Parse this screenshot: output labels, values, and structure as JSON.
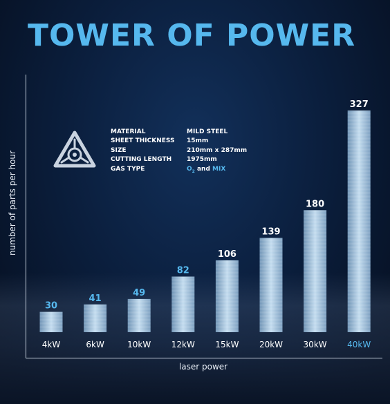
{
  "title": "TOWER OF POWER",
  "specs": {
    "rows": [
      {
        "key": "MATERIAL",
        "value": "MILD STEEL"
      },
      {
        "key": "SHEET THICKNESS",
        "value": "15mm"
      },
      {
        "key": "SIZE",
        "value": "210mm x 287mm"
      },
      {
        "key": "CUTTING LENGTH",
        "value": "1975mm"
      }
    ],
    "gas_key": "GAS TYPE",
    "gas_o": "O",
    "gas_sub": "2",
    "gas_and": " and ",
    "gas_mix": "MIX"
  },
  "colors": {
    "accent": "#56b8ee",
    "background": "#0b1f3e",
    "bar": "#a9c8e2",
    "label_white": "#ffffff"
  },
  "chart_data": {
    "type": "bar",
    "categories": [
      "4kW",
      "6kW",
      "10kW",
      "12kW",
      "15kW",
      "20kW",
      "30kW",
      "40kW"
    ],
    "values": [
      30,
      41,
      49,
      82,
      106,
      139,
      180,
      327
    ],
    "value_label_colors": [
      "#56b8ee",
      "#56b8ee",
      "#56b8ee",
      "#56b8ee",
      "#ffffff",
      "#ffffff",
      "#ffffff",
      "#ffffff"
    ],
    "category_label_colors": [
      "#ffffff",
      "#ffffff",
      "#ffffff",
      "#ffffff",
      "#ffffff",
      "#ffffff",
      "#ffffff",
      "#56b8ee"
    ],
    "xlabel": "laser power",
    "ylabel": "number of parts per hour",
    "ylim": [
      0,
      327
    ],
    "grid": false,
    "legend": "none"
  }
}
